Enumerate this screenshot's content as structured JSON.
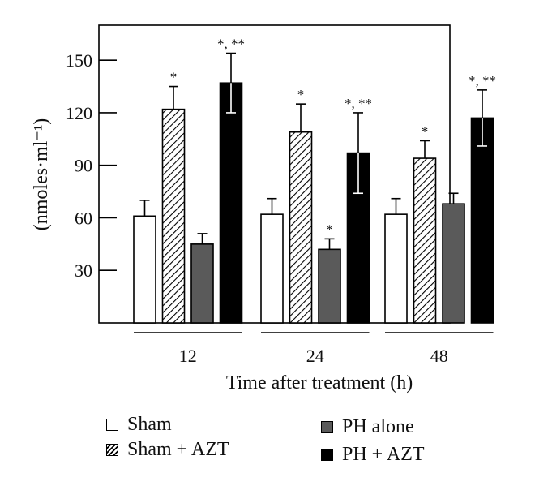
{
  "chart_data": {
    "type": "bar",
    "xlabel": "Time after treatment (h)",
    "ylabel": "(nmoles·ml⁻¹)",
    "ylim": [
      0,
      170
    ],
    "yticks": [
      "30",
      "60",
      "90",
      "120",
      "150"
    ],
    "categories": [
      "12",
      "24",
      "48"
    ],
    "grid": false,
    "legend_position": "bottom",
    "series": [
      {
        "name": "Sham",
        "pattern": "white",
        "values": [
          61,
          62,
          62
        ],
        "errors": [
          9,
          9,
          9
        ],
        "annotations": [
          "",
          "",
          ""
        ]
      },
      {
        "name": "Sham + AZT",
        "pattern": "hatched",
        "values": [
          122,
          109,
          94
        ],
        "errors": [
          13,
          16,
          10
        ],
        "annotations": [
          "*",
          "*",
          "*"
        ]
      },
      {
        "name": "PH alone",
        "pattern": "dark-gray",
        "values": [
          45,
          42,
          68
        ],
        "errors": [
          6,
          6,
          6
        ],
        "annotations": [
          "",
          "*",
          ""
        ]
      },
      {
        "name": "PH + AZT",
        "pattern": "black",
        "values": [
          137,
          97,
          117
        ],
        "errors": [
          17,
          23,
          16
        ],
        "annotations": [
          "*, **",
          "*, **",
          "*, **"
        ]
      }
    ]
  },
  "colors": {
    "axis": "#000000",
    "white": "#ffffff",
    "dark_gray": "#5a5a5a",
    "black": "#000000",
    "hatch": "#000000"
  }
}
